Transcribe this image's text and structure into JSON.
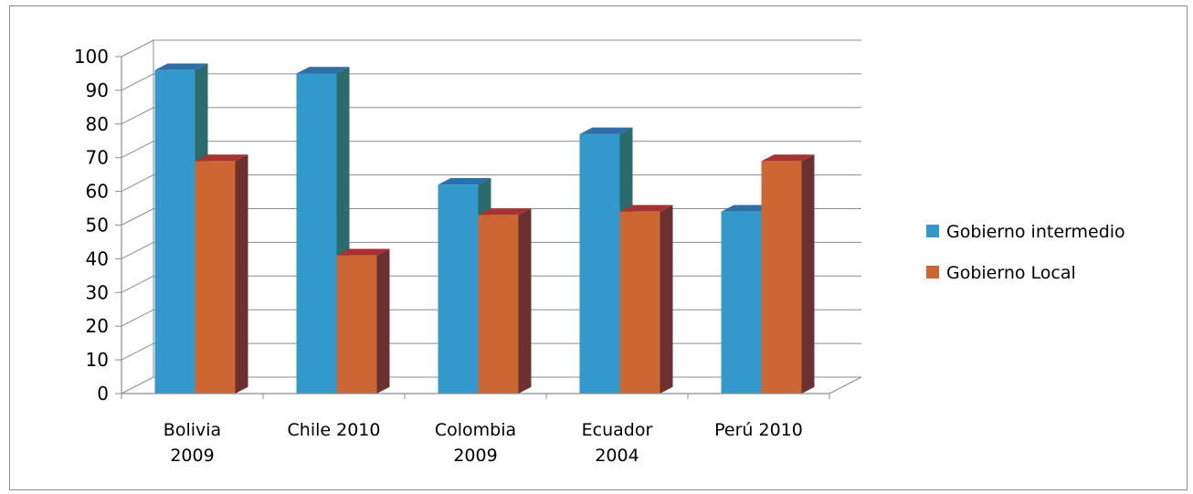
{
  "chart_data": {
    "type": "bar",
    "style": "3d-clustered-column",
    "categories": [
      [
        "Bolivia",
        "2009"
      ],
      [
        "Chile 2010"
      ],
      [
        "Colombia",
        "2009"
      ],
      [
        "Ecuador",
        "2004"
      ],
      [
        "Perú 2010"
      ]
    ],
    "series": [
      {
        "name": "Gobierno intermedio",
        "values": [
          96,
          95,
          62,
          77,
          54
        ],
        "color": "#3399cc",
        "side_color": "#2b6b6b",
        "top_color": "#2f6fa8"
      },
      {
        "name": "Gobierno Local",
        "values": [
          69,
          41,
          53,
          54,
          69
        ],
        "color": "#cc6633",
        "side_color": "#6b3030",
        "top_color": "#a83232"
      }
    ],
    "yticks": [
      0,
      10,
      20,
      30,
      40,
      50,
      60,
      70,
      80,
      90,
      100
    ],
    "ylim": [
      0,
      100
    ],
    "grid": true,
    "legend_position": "right"
  }
}
